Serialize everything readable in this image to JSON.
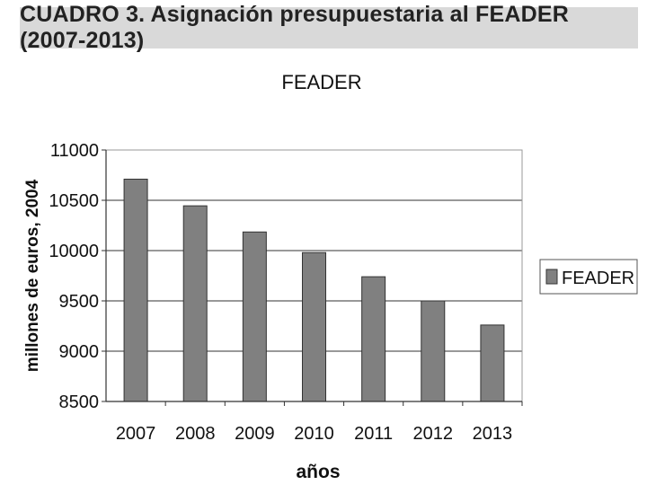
{
  "header": {
    "title": "CUADRO 3. Asignación presupuestaria al FEADER (2007-2013)"
  },
  "chart_data": {
    "type": "bar",
    "title": "FEADER",
    "xlabel": "años",
    "ylabel": "millones de euros, 2004",
    "categories": [
      "2007",
      "2008",
      "2009",
      "2010",
      "2011",
      "2012",
      "2013"
    ],
    "series": [
      {
        "name": "FEADER",
        "values": [
          10710,
          10445,
          10185,
          9980,
          9740,
          9500,
          9260
        ]
      }
    ],
    "ylim": [
      8500,
      11000
    ],
    "yticks": [
      8500,
      9000,
      9500,
      10000,
      10500,
      11000
    ],
    "grid": true,
    "legend": "right",
    "colors": {
      "bar": "#808080",
      "bar_stroke": "#333333",
      "plot_border": "#999999",
      "gridline": "#333333"
    }
  }
}
